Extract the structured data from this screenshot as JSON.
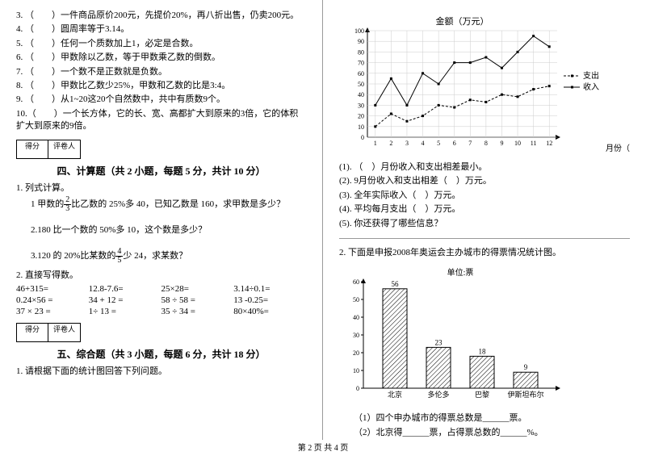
{
  "left": {
    "tf": [
      "3. （　　）一件商品原价200元，先提价20%，再八折出售，仍卖200元。",
      "4. （　　）圆周率等于3.14。",
      "5. （　　）任何一个质数加上1，必定是合数。",
      "6. （　　）甲数除以乙数，等于甲数乘乙数的倒数。",
      "7. （　　）一个数不是正数就是负数。",
      "8. （　　）甲数比乙数少25%，甲数和乙数的比是3:4。",
      "9. （　　）从1~20这20个自然数中，共中有质数9个。",
      "10.（　　）一个长方体，它的长、宽、高都扩大到原来的3倍，它的体积扩大到原来的9倍。"
    ],
    "score_labels": [
      "得分",
      "评卷人"
    ],
    "sec4_title": "四、计算题（共 2 小题，每题 5 分，共计 10 分）",
    "q1_head": "1. 列式计算。",
    "q1_1a": "1 甲数的",
    "q1_1b": "比乙数的 25%多 40，已知乙数是 160，求甲数是多少？",
    "q1_2": "2.180 比一个数的 50%多 10，这个数是多少？",
    "q1_3a": "3.120 的 20%比某数的",
    "q1_3b": "少 24，求某数？",
    "q2_head": "2. 直接写得数。",
    "calc": [
      [
        "46+315=",
        "12.8-7.6=",
        "25×28=",
        "3.14÷0.1="
      ],
      [
        "0.24×56 =",
        "34 + 12 =",
        "58 ÷ 58 =",
        "13 -0.25="
      ],
      [
        "37 × 23 =",
        "1÷ 13 =",
        "35 ÷ 34 =",
        "80×40%="
      ]
    ],
    "sec5_title": "五、综合题（共 3 小题，每题 6 分，共计 18 分）",
    "q5_1": "1. 请根据下面的统计图回答下列问题。"
  },
  "right": {
    "chart1": {
      "y_title": "金额（万元）",
      "x_title": "月份（月）",
      "y_ticks": [
        0,
        10,
        20,
        30,
        40,
        50,
        60,
        70,
        80,
        90,
        100
      ],
      "x_ticks": [
        1,
        2,
        3,
        4,
        5,
        6,
        7,
        8,
        9,
        10,
        11,
        12
      ],
      "legend": [
        "支出",
        "收入"
      ],
      "income": [
        30,
        55,
        30,
        60,
        50,
        70,
        70,
        75,
        65,
        80,
        95,
        85
      ],
      "expense": [
        10,
        22,
        15,
        20,
        30,
        28,
        35,
        33,
        40,
        38,
        45,
        48
      ],
      "colors": {
        "axis": "#000",
        "grid": "#999",
        "line": "#000"
      }
    },
    "chart1_q": [
      "(1). （　）月份收入和支出相差最小。",
      "(2). 9月份收入和支出相差（　）万元。",
      "(3). 全年实际收入（　）万元。",
      "(4). 平均每月支出（　）万元。",
      "(5). 你还获得了哪些信息？"
    ],
    "q2_head": "2. 下面是申报2008年奥运会主办城市的得票情况统计图。",
    "chart2": {
      "unit": "单位:票",
      "y_ticks": [
        0,
        10,
        20,
        30,
        40,
        50,
        60
      ],
      "cats": [
        "北京",
        "多伦多",
        "巴黎",
        "伊斯坦布尔"
      ],
      "vals": [
        56,
        23,
        18,
        9
      ],
      "bar_color": "pattern"
    },
    "chart2_q": [
      "（1）四个申办城市的得票总数是______票。",
      "（2）北京得______票，占得票总数的______%。"
    ]
  },
  "footer": "第 2 页 共 4 页"
}
